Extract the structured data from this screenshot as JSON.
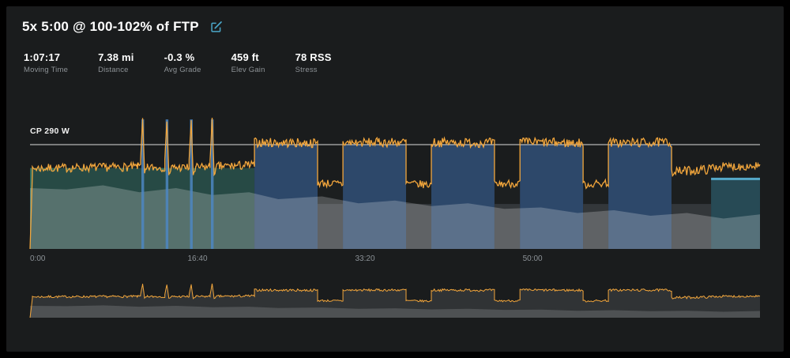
{
  "header": {
    "title": "5x 5:00 @ 100-102% of FTP",
    "edit_icon": "compose-icon",
    "accent_color": "#4aa6c8"
  },
  "stats": [
    {
      "value": "1:07:17",
      "label": "Moving Time"
    },
    {
      "value": "7.38 mi",
      "label": "Distance"
    },
    {
      "value": "-0.3 %",
      "label": "Avg Grade"
    },
    {
      "value": "459 ft",
      "label": "Elev Gain"
    },
    {
      "value": "78 RSS",
      "label": "Stress"
    }
  ],
  "chart_data": {
    "type": "line",
    "title": "Workout power over time with planned interval blocks",
    "cp_label": "CP 290 W",
    "cp_watts": 290,
    "duration_s": 4358,
    "y_max_watts": 385,
    "noise_seed": 7,
    "x_ticks": [
      {
        "s": 0,
        "label": "0:00"
      },
      {
        "s": 1000,
        "label": "16:40"
      },
      {
        "s": 2000,
        "label": "33:20"
      },
      {
        "s": 3000,
        "label": "50:00"
      }
    ],
    "colors": {
      "background": "#1a1c1d",
      "warmup": "#2e6b5f",
      "interval": "#3a66a2",
      "recovery": "#44484c",
      "cooldown": "#2e6b7c",
      "cooldown_cap": "#55a8c8",
      "sprint": "#4c86c2",
      "power_line": "#f2a63c",
      "cp_line": "#dcdcdc",
      "axis_text": "#8b9196",
      "dark_overlay": "rgba(32,35,37,0.45)",
      "light_overlay": "rgba(255,255,255,0.22)",
      "mini_fill": "#303335",
      "mini_light_overlay": "rgba(255,255,255,0.15)"
    },
    "blocks": [
      {
        "start": 0,
        "end": 1340,
        "watts": 225,
        "zone": "warmup"
      },
      {
        "start": 1340,
        "end": 1717,
        "watts": 290,
        "zone": "interval"
      },
      {
        "start": 1717,
        "end": 1868,
        "watts": 125,
        "zone": "recovery"
      },
      {
        "start": 1868,
        "end": 2245,
        "watts": 290,
        "zone": "interval"
      },
      {
        "start": 2245,
        "end": 2396,
        "watts": 125,
        "zone": "recovery"
      },
      {
        "start": 2396,
        "end": 2773,
        "watts": 290,
        "zone": "interval"
      },
      {
        "start": 2773,
        "end": 2925,
        "watts": 125,
        "zone": "recovery"
      },
      {
        "start": 2925,
        "end": 3302,
        "watts": 290,
        "zone": "interval"
      },
      {
        "start": 3302,
        "end": 3453,
        "watts": 125,
        "zone": "recovery"
      },
      {
        "start": 3453,
        "end": 3830,
        "watts": 290,
        "zone": "interval"
      },
      {
        "start": 3830,
        "end": 4066,
        "watts": 125,
        "zone": "recovery"
      },
      {
        "start": 4066,
        "end": 4358,
        "watts": 198,
        "zone": "cooldown"
      }
    ],
    "sprint_bars": [
      {
        "start": 665,
        "end": 681,
        "watts": 360
      },
      {
        "start": 810,
        "end": 826,
        "watts": 360
      },
      {
        "start": 955,
        "end": 971,
        "watts": 360
      },
      {
        "start": 1080,
        "end": 1096,
        "watts": 360
      }
    ],
    "power_segments_format": "[t_start_s, t_end_s, watts_start, watts_end, jitter_watts]",
    "power_segments": [
      [
        0,
        14,
        0,
        205,
        4
      ],
      [
        14,
        640,
        224,
        228,
        12
      ],
      [
        640,
        660,
        228,
        234,
        8
      ],
      [
        660,
        672,
        250,
        360,
        6
      ],
      [
        672,
        684,
        360,
        208,
        6
      ],
      [
        684,
        700,
        208,
        226,
        8
      ],
      [
        700,
        805,
        226,
        227,
        12
      ],
      [
        805,
        817,
        245,
        358,
        6
      ],
      [
        817,
        829,
        358,
        205,
        6
      ],
      [
        829,
        845,
        205,
        226,
        8
      ],
      [
        845,
        950,
        226,
        226,
        12
      ],
      [
        950,
        962,
        248,
        352,
        6
      ],
      [
        962,
        974,
        352,
        208,
        6
      ],
      [
        974,
        990,
        208,
        224,
        8
      ],
      [
        990,
        1075,
        226,
        228,
        12
      ],
      [
        1075,
        1087,
        248,
        362,
        6
      ],
      [
        1087,
        1099,
        362,
        210,
        6
      ],
      [
        1099,
        1115,
        210,
        228,
        8
      ],
      [
        1115,
        1340,
        229,
        233,
        13
      ],
      [
        1340,
        1717,
        296,
        294,
        13
      ],
      [
        1717,
        1868,
        184,
        180,
        11
      ],
      [
        1868,
        2245,
        295,
        297,
        13
      ],
      [
        2245,
        2396,
        182,
        178,
        11
      ],
      [
        2396,
        2773,
        296,
        295,
        13
      ],
      [
        2773,
        2925,
        180,
        183,
        11
      ],
      [
        2925,
        3302,
        297,
        294,
        13
      ],
      [
        3302,
        3453,
        178,
        184,
        11
      ],
      [
        3453,
        3830,
        295,
        296,
        13
      ],
      [
        3830,
        4066,
        214,
        222,
        13
      ],
      [
        4066,
        4358,
        228,
        231,
        12
      ]
    ],
    "elevation_profile_format": "[x_fraction_of_ride, height_fraction_of_plot]",
    "elevation_profile": [
      [
        0,
        0.44
      ],
      [
        0.05,
        0.43
      ],
      [
        0.1,
        0.46
      ],
      [
        0.15,
        0.41
      ],
      [
        0.2,
        0.44
      ],
      [
        0.25,
        0.39
      ],
      [
        0.3,
        0.41
      ],
      [
        0.34,
        0.36
      ],
      [
        0.4,
        0.38
      ],
      [
        0.45,
        0.33
      ],
      [
        0.5,
        0.35
      ],
      [
        0.55,
        0.31
      ],
      [
        0.6,
        0.33
      ],
      [
        0.65,
        0.29
      ],
      [
        0.7,
        0.3
      ],
      [
        0.75,
        0.26
      ],
      [
        0.8,
        0.28
      ],
      [
        0.85,
        0.24
      ],
      [
        0.9,
        0.26
      ],
      [
        0.95,
        0.22
      ],
      [
        1.0,
        0.25
      ]
    ]
  }
}
